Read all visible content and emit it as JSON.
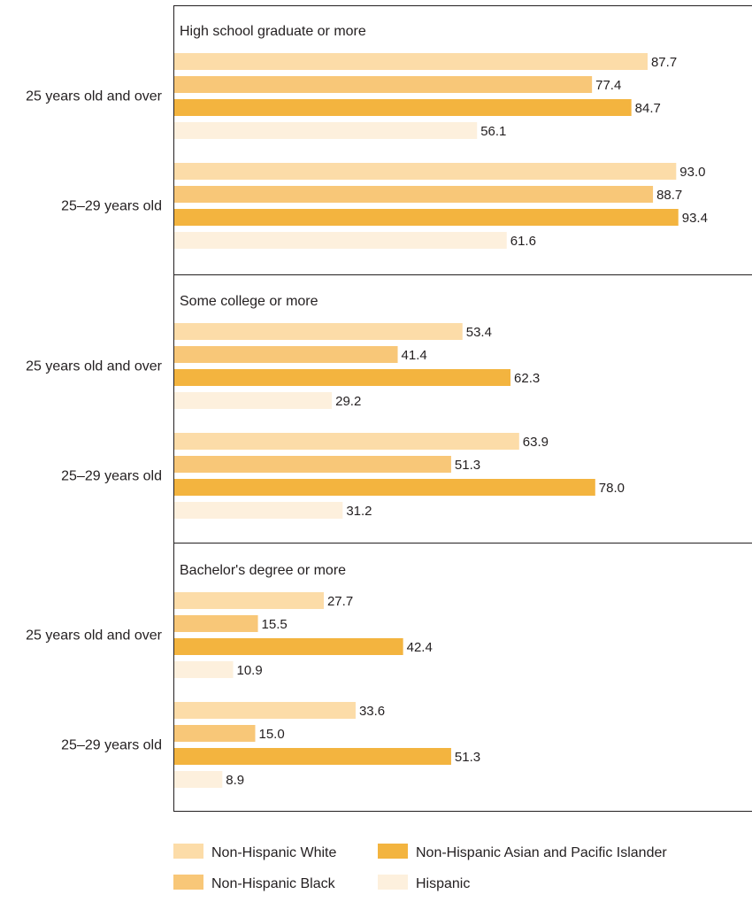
{
  "chart_data": {
    "type": "bar",
    "orientation": "horizontal",
    "legend_position": "bottom",
    "grid": false,
    "xlim": [
      0,
      100
    ],
    "series_names": [
      "Non-Hispanic White",
      "Non-Hispanic Black",
      "Non-Hispanic Asian and Pacific Islander",
      "Hispanic"
    ],
    "colors": [
      "#fcdca8",
      "#f8c778",
      "#f3b43f",
      "#fdf0dd"
    ],
    "panels": [
      {
        "title": "High school graduate or more",
        "groups": [
          {
            "label": "25 years old and over",
            "values": [
              87.7,
              77.4,
              84.7,
              56.1
            ]
          },
          {
            "label": "25–29 years old",
            "values": [
              93.0,
              88.7,
              93.4,
              61.6
            ]
          }
        ]
      },
      {
        "title": "Some college or more",
        "groups": [
          {
            "label": "25 years old and over",
            "values": [
              53.4,
              41.4,
              62.3,
              29.2
            ]
          },
          {
            "label": "25–29 years old",
            "values": [
              63.9,
              51.3,
              78.0,
              31.2
            ]
          }
        ]
      },
      {
        "title": "Bachelor's degree or more",
        "groups": [
          {
            "label": "25 years old and over",
            "values": [
              27.7,
              15.5,
              42.4,
              10.9
            ]
          },
          {
            "label": "25–29 years old",
            "values": [
              33.6,
              15.0,
              51.3,
              8.9
            ]
          }
        ]
      }
    ]
  }
}
